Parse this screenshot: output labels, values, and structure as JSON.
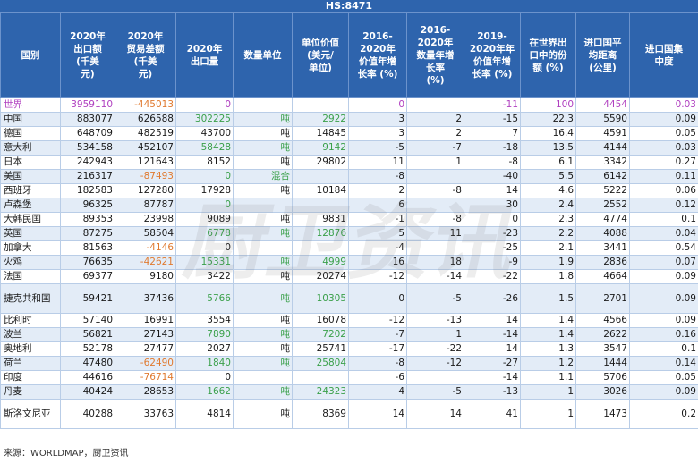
{
  "title": "HS:8471",
  "headers": [
    "国别",
    "2020年\n出口额\n(千美\n元)",
    "2020年\n贸易差额\n(千美\n元)",
    "2020年\n出口量",
    "数量单位",
    "单位价值\n(美元/\n单位)",
    "2016-\n2020年\n价值年增\n长率 (%)",
    "2016-\n2020年\n数量年增\n长率\n(%)",
    "2019-\n2020年年\n价值年增\n长率 (%)",
    "在世界出\n口中的份\n额 (%)",
    "进口国平\n均距离\n(公里)",
    "进口国集\n中度"
  ],
  "rows": [
    [
      "世界",
      "3959110",
      "-445013",
      "0",
      "",
      "",
      "0",
      "",
      "-11",
      "100",
      "4454",
      "0.03"
    ],
    [
      "中国",
      "883077",
      "626588",
      "302225",
      "吨",
      "2922",
      "3",
      "2",
      "-15",
      "22.3",
      "5590",
      "0.09"
    ],
    [
      "德国",
      "648709",
      "482519",
      "43700",
      "吨",
      "14845",
      "3",
      "2",
      "7",
      "16.4",
      "4591",
      "0.05"
    ],
    [
      "意大利",
      "534158",
      "452107",
      "58428",
      "吨",
      "9142",
      "-5",
      "-7",
      "-18",
      "13.5",
      "4144",
      "0.03"
    ],
    [
      "日本",
      "242943",
      "121643",
      "8152",
      "吨",
      "29802",
      "11",
      "1",
      "-8",
      "6.1",
      "3342",
      "0.27"
    ],
    [
      "美国",
      "216317",
      "-87493",
      "0",
      "混合",
      "",
      "-8",
      "",
      "-40",
      "5.5",
      "6142",
      "0.11"
    ],
    [
      "西班牙",
      "182583",
      "127280",
      "17928",
      "吨",
      "10184",
      "2",
      "-8",
      "14",
      "4.6",
      "5222",
      "0.06"
    ],
    [
      "卢森堡",
      "96325",
      "87787",
      "0",
      "",
      "",
      "6",
      "",
      "30",
      "2.4",
      "2552",
      "0.12"
    ],
    [
      "大韩民国",
      "89353",
      "23998",
      "9089",
      "吨",
      "9831",
      "-1",
      "-8",
      "0",
      "2.3",
      "4774",
      "0.1"
    ],
    [
      "英国",
      "87275",
      "58504",
      "6778",
      "吨",
      "12876",
      "5",
      "11",
      "-23",
      "2.2",
      "4088",
      "0.04"
    ],
    [
      "加拿大",
      "81563",
      "-4146",
      "0",
      "",
      "",
      "-4",
      "",
      "-25",
      "2.1",
      "3441",
      "0.54"
    ],
    [
      "火鸡",
      "76635",
      "-42621",
      "15331",
      "吨",
      "4999",
      "16",
      "18",
      "-9",
      "1.9",
      "2836",
      "0.07"
    ],
    [
      "法国",
      "69377",
      "9180",
      "3422",
      "吨",
      "20274",
      "-12",
      "-14",
      "-22",
      "1.8",
      "4664",
      "0.09"
    ],
    [
      "捷克共和国",
      "59421",
      "37436",
      "5766",
      "吨",
      "10305",
      "0",
      "-5",
      "-26",
      "1.5",
      "2701",
      "0.09"
    ],
    [
      "比利时",
      "57140",
      "16991",
      "3554",
      "吨",
      "16078",
      "-12",
      "-13",
      "14",
      "1.4",
      "4566",
      "0.09"
    ],
    [
      "波兰",
      "56821",
      "27143",
      "7890",
      "吨",
      "7202",
      "-7",
      "1",
      "-14",
      "1.4",
      "2622",
      "0.16"
    ],
    [
      "奥地利",
      "52178",
      "27477",
      "2027",
      "吨",
      "25741",
      "-17",
      "-22",
      "14",
      "1.3",
      "3547",
      "0.1"
    ],
    [
      "荷兰",
      "47480",
      "-62490",
      "1840",
      "吨",
      "25804",
      "-8",
      "-12",
      "-27",
      "1.2",
      "1444",
      "0.14"
    ],
    [
      "印度",
      "44616",
      "-76714",
      "0",
      "",
      "",
      "-6",
      "",
      "-14",
      "1.1",
      "5706",
      "0.05"
    ],
    [
      "丹麦",
      "40424",
      "28653",
      "1662",
      "吨",
      "24323",
      "4",
      "-5",
      "-13",
      "1",
      "3026",
      "0.09"
    ],
    [
      "斯洛文尼亚",
      "40288",
      "33763",
      "4814",
      "吨",
      "8369",
      "14",
      "14",
      "41",
      "1",
      "1473",
      "0.2"
    ]
  ],
  "watermark": "厨卫资讯",
  "footer": "来源：WORLDMAP，厨卫资讯",
  "colors": {
    "header_bg": "#2e64ad",
    "row_alt": "#e3ecf7",
    "world_text": "#b040c0",
    "negative_text": "#e07a30",
    "green_text": "#3aa04a"
  }
}
